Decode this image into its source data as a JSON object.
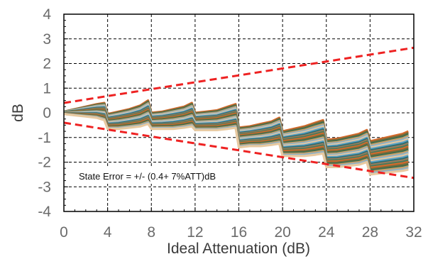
{
  "chart_data": {
    "type": "line",
    "title": "",
    "xlabel": "Ideal Attenuation  (dB)",
    "ylabel": "dB",
    "xlim": [
      0,
      32
    ],
    "ylim": [
      -4,
      4
    ],
    "xticks": [
      0,
      4,
      8,
      12,
      16,
      20,
      24,
      28,
      32
    ],
    "yticks": [
      4,
      3,
      2,
      1,
      0,
      -1,
      -2,
      -3,
      -4
    ],
    "x_tick_labels": [
      "0",
      "4",
      "8",
      "12",
      "16",
      "20",
      "24",
      "28",
      "32"
    ],
    "y_tick_labels": [
      "4",
      "3",
      "2",
      "1",
      "0",
      "-1",
      "-2",
      "-3",
      "-4"
    ],
    "grid": true,
    "annotation": "State Error = +/- (0.4+ 7%ATT)dB",
    "limit_lines": [
      {
        "kind": "upper-limit",
        "color": "#ee2222",
        "x": [
          0,
          32
        ],
        "y": [
          0.4,
          2.64
        ]
      },
      {
        "kind": "lower-limit",
        "color": "#ee2222",
        "x": [
          0,
          32
        ],
        "y": [
          -0.4,
          -2.64
        ]
      }
    ],
    "measured_band": {
      "x": [
        0,
        1,
        2,
        3,
        3.7,
        4,
        5,
        6,
        7,
        7.7,
        8,
        9,
        10,
        11,
        11.7,
        12,
        13,
        14,
        15,
        15.7,
        16,
        17,
        18,
        19,
        19.7,
        20,
        21,
        22,
        23,
        23.7,
        24,
        25,
        26,
        27,
        27.7,
        28,
        29,
        30,
        31,
        31.5
      ],
      "upper": [
        0.05,
        0.15,
        0.25,
        0.35,
        0.4,
        -0.05,
        0.05,
        0.15,
        0.3,
        0.5,
        0,
        0.05,
        0.15,
        0.25,
        0.4,
        0,
        0.05,
        0.1,
        0.25,
        0.35,
        -0.6,
        -0.55,
        -0.45,
        -0.35,
        -0.2,
        -0.75,
        -0.65,
        -0.55,
        -0.4,
        -0.3,
        -1.1,
        -1.05,
        -0.95,
        -0.85,
        -0.7,
        -1.15,
        -1.05,
        -0.95,
        -0.85,
        -0.75
      ],
      "lower": [
        -0.05,
        -0.1,
        -0.15,
        -0.2,
        -0.3,
        -0.65,
        -0.65,
        -0.6,
        -0.55,
        -0.45,
        -0.65,
        -0.65,
        -0.65,
        -0.6,
        -0.55,
        -0.7,
        -0.7,
        -0.7,
        -0.65,
        -0.6,
        -1.4,
        -1.35,
        -1.35,
        -1.3,
        -1.25,
        -1.75,
        -1.75,
        -1.75,
        -1.7,
        -1.65,
        -2.2,
        -2.2,
        -2.15,
        -2.1,
        -2.0,
        -2.5,
        -2.45,
        -2.4,
        -2.35,
        -2.3
      ],
      "colors": [
        "#d8692a",
        "#7b6a3a",
        "#3d6d4e",
        "#c9a06a",
        "#8fb3c8",
        "#e8c9a0",
        "#5ea3c8",
        "#2d6e72",
        "#9a7b5c",
        "#4a7a5a"
      ]
    }
  }
}
